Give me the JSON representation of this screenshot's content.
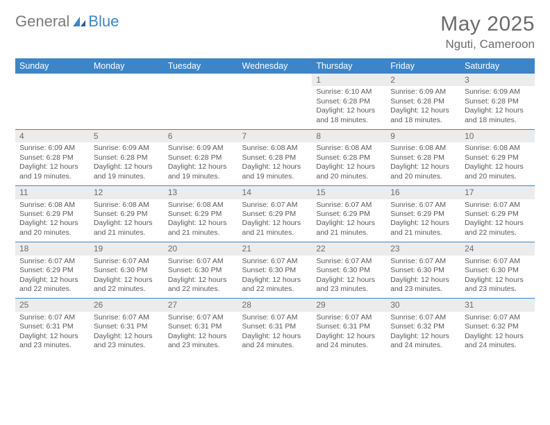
{
  "logo": {
    "text1": "General",
    "text2": "Blue",
    "brand_color": "#3d85c6"
  },
  "title": "May 2025",
  "location": "Nguti, Cameroon",
  "header_bg": "#3d85c6",
  "daynum_bg": "#ececec",
  "days": [
    "Sunday",
    "Monday",
    "Tuesday",
    "Wednesday",
    "Thursday",
    "Friday",
    "Saturday"
  ],
  "weeks": [
    [
      null,
      null,
      null,
      null,
      {
        "n": "1",
        "sr": "6:10 AM",
        "ss": "6:28 PM",
        "dl": "12 hours and 18 minutes."
      },
      {
        "n": "2",
        "sr": "6:09 AM",
        "ss": "6:28 PM",
        "dl": "12 hours and 18 minutes."
      },
      {
        "n": "3",
        "sr": "6:09 AM",
        "ss": "6:28 PM",
        "dl": "12 hours and 18 minutes."
      }
    ],
    [
      {
        "n": "4",
        "sr": "6:09 AM",
        "ss": "6:28 PM",
        "dl": "12 hours and 19 minutes."
      },
      {
        "n": "5",
        "sr": "6:09 AM",
        "ss": "6:28 PM",
        "dl": "12 hours and 19 minutes."
      },
      {
        "n": "6",
        "sr": "6:09 AM",
        "ss": "6:28 PM",
        "dl": "12 hours and 19 minutes."
      },
      {
        "n": "7",
        "sr": "6:08 AM",
        "ss": "6:28 PM",
        "dl": "12 hours and 19 minutes."
      },
      {
        "n": "8",
        "sr": "6:08 AM",
        "ss": "6:28 PM",
        "dl": "12 hours and 20 minutes."
      },
      {
        "n": "9",
        "sr": "6:08 AM",
        "ss": "6:28 PM",
        "dl": "12 hours and 20 minutes."
      },
      {
        "n": "10",
        "sr": "6:08 AM",
        "ss": "6:29 PM",
        "dl": "12 hours and 20 minutes."
      }
    ],
    [
      {
        "n": "11",
        "sr": "6:08 AM",
        "ss": "6:29 PM",
        "dl": "12 hours and 20 minutes."
      },
      {
        "n": "12",
        "sr": "6:08 AM",
        "ss": "6:29 PM",
        "dl": "12 hours and 21 minutes."
      },
      {
        "n": "13",
        "sr": "6:08 AM",
        "ss": "6:29 PM",
        "dl": "12 hours and 21 minutes."
      },
      {
        "n": "14",
        "sr": "6:07 AM",
        "ss": "6:29 PM",
        "dl": "12 hours and 21 minutes."
      },
      {
        "n": "15",
        "sr": "6:07 AM",
        "ss": "6:29 PM",
        "dl": "12 hours and 21 minutes."
      },
      {
        "n": "16",
        "sr": "6:07 AM",
        "ss": "6:29 PM",
        "dl": "12 hours and 21 minutes."
      },
      {
        "n": "17",
        "sr": "6:07 AM",
        "ss": "6:29 PM",
        "dl": "12 hours and 22 minutes."
      }
    ],
    [
      {
        "n": "18",
        "sr": "6:07 AM",
        "ss": "6:29 PM",
        "dl": "12 hours and 22 minutes."
      },
      {
        "n": "19",
        "sr": "6:07 AM",
        "ss": "6:30 PM",
        "dl": "12 hours and 22 minutes."
      },
      {
        "n": "20",
        "sr": "6:07 AM",
        "ss": "6:30 PM",
        "dl": "12 hours and 22 minutes."
      },
      {
        "n": "21",
        "sr": "6:07 AM",
        "ss": "6:30 PM",
        "dl": "12 hours and 22 minutes."
      },
      {
        "n": "22",
        "sr": "6:07 AM",
        "ss": "6:30 PM",
        "dl": "12 hours and 23 minutes."
      },
      {
        "n": "23",
        "sr": "6:07 AM",
        "ss": "6:30 PM",
        "dl": "12 hours and 23 minutes."
      },
      {
        "n": "24",
        "sr": "6:07 AM",
        "ss": "6:30 PM",
        "dl": "12 hours and 23 minutes."
      }
    ],
    [
      {
        "n": "25",
        "sr": "6:07 AM",
        "ss": "6:31 PM",
        "dl": "12 hours and 23 minutes."
      },
      {
        "n": "26",
        "sr": "6:07 AM",
        "ss": "6:31 PM",
        "dl": "12 hours and 23 minutes."
      },
      {
        "n": "27",
        "sr": "6:07 AM",
        "ss": "6:31 PM",
        "dl": "12 hours and 23 minutes."
      },
      {
        "n": "28",
        "sr": "6:07 AM",
        "ss": "6:31 PM",
        "dl": "12 hours and 24 minutes."
      },
      {
        "n": "29",
        "sr": "6:07 AM",
        "ss": "6:31 PM",
        "dl": "12 hours and 24 minutes."
      },
      {
        "n": "30",
        "sr": "6:07 AM",
        "ss": "6:32 PM",
        "dl": "12 hours and 24 minutes."
      },
      {
        "n": "31",
        "sr": "6:07 AM",
        "ss": "6:32 PM",
        "dl": "12 hours and 24 minutes."
      }
    ]
  ],
  "labels": {
    "sunrise": "Sunrise:",
    "sunset": "Sunset:",
    "daylight": "Daylight:"
  }
}
